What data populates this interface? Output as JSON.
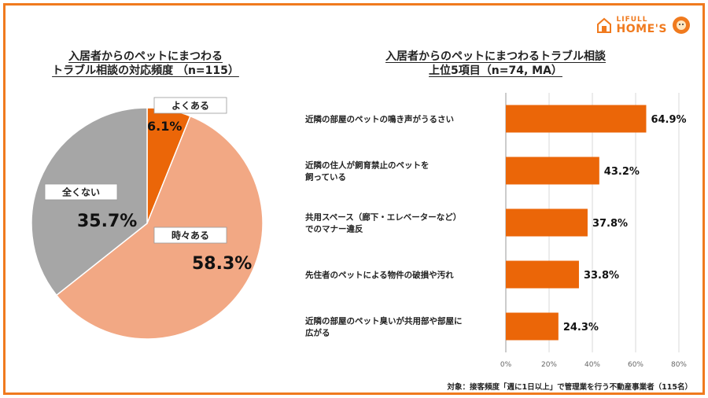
{
  "brand": {
    "line1": "LIFULL",
    "line2": "HOME'S",
    "logo_icon": "house-icon",
    "mascot_icon": "mascot-icon",
    "accent": "#f07a1e"
  },
  "footnote": "対象：接客頻度「週に1日以上」で管理業を行う不動産事業者（115名）",
  "chart_data": [
    {
      "type": "pie",
      "title": [
        "入居者からのペットにまつわる",
        "トラブル相談の対応頻度 （n=115）"
      ],
      "slices": [
        {
          "label": "よくある",
          "value": 6.1,
          "display": "6.1%",
          "color": "#eb6608"
        },
        {
          "label": "時々ある",
          "value": 58.3,
          "display": "58.3%",
          "color": "#f2a884"
        },
        {
          "label": "全くない",
          "value": 35.7,
          "display": "35.7%",
          "color": "#a6a6a6"
        }
      ]
    },
    {
      "type": "bar",
      "orientation": "horizontal",
      "title": [
        "入居者からのペットにまつわるトラブル相談",
        "上位5項目（n=74, MA）"
      ],
      "categories": [
        [
          "近隣の部屋のペットの鳴き声がうるさい"
        ],
        [
          "近隣の住人が飼育禁止のペットを",
          "飼っている"
        ],
        [
          "共用スペース（廊下・エレベーターなど）",
          "でのマナー違反"
        ],
        [
          "先住者のペットによる物件の破損や汚れ"
        ],
        [
          "近隣の部屋のペット臭いが共用部や部屋に",
          "広がる"
        ]
      ],
      "values": [
        64.9,
        43.2,
        37.8,
        33.8,
        24.3
      ],
      "value_labels": [
        "64.9%",
        "43.2%",
        "37.8%",
        "33.8%",
        "24.3%"
      ],
      "xlim": [
        0,
        80
      ],
      "ticks": [
        "0%",
        "20%",
        "40%",
        "60%",
        "80%"
      ],
      "grid": true,
      "color": "#eb6608"
    }
  ]
}
